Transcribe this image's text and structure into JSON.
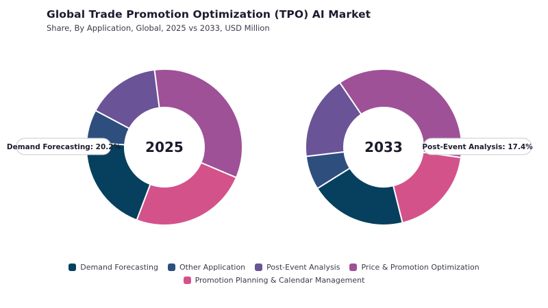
{
  "title": "Global Trade Promotion Optimization (TPO) AI Market",
  "subtitle": "Share, By Application, Global, 2025 vs 2033, USD Million",
  "chart_data": [
    {
      "type": "donut",
      "center_label": "2025",
      "callout": "Demand Forecasting: 20.2%",
      "slices": [
        {
          "name": "Post-Event Analysis",
          "value": 15.2,
          "color": "#6a5396"
        },
        {
          "name": "Price & Promotion Optimization",
          "value": 33.4,
          "color": "#9e5197"
        },
        {
          "name": "Promotion Planning & Calendar Management",
          "value": 24.4,
          "color": "#d4528a"
        },
        {
          "name": "Demand Forecasting",
          "value": 20.2,
          "color": "#06405e"
        },
        {
          "name": "Other Application",
          "value": 6.8,
          "color": "#2e4e7e"
        }
      ]
    },
    {
      "type": "donut",
      "center_label": "2033",
      "callout": "Post-Event Analysis: 17.4%",
      "slices": [
        {
          "name": "Other Application",
          "value": 7.0,
          "color": "#2e4e7e"
        },
        {
          "name": "Post-Event Analysis",
          "value": 17.4,
          "color": "#6a5396"
        },
        {
          "name": "Price & Promotion Optimization",
          "value": 36.6,
          "color": "#9e5197"
        },
        {
          "name": "Promotion Planning & Calendar Management",
          "value": 19.0,
          "color": "#d4528a"
        },
        {
          "name": "Demand Forecasting",
          "value": 20.0,
          "color": "#06405e"
        }
      ]
    }
  ],
  "legend": [
    {
      "label": "Demand Forecasting",
      "color": "#06405e"
    },
    {
      "label": "Other Application",
      "color": "#2e4e7e"
    },
    {
      "label": "Post-Event Analysis",
      "color": "#6a5396"
    },
    {
      "label": "Price & Promotion Optimization",
      "color": "#9e5197"
    },
    {
      "label": "Promotion Planning & Calendar Management",
      "color": "#d4528a"
    }
  ]
}
